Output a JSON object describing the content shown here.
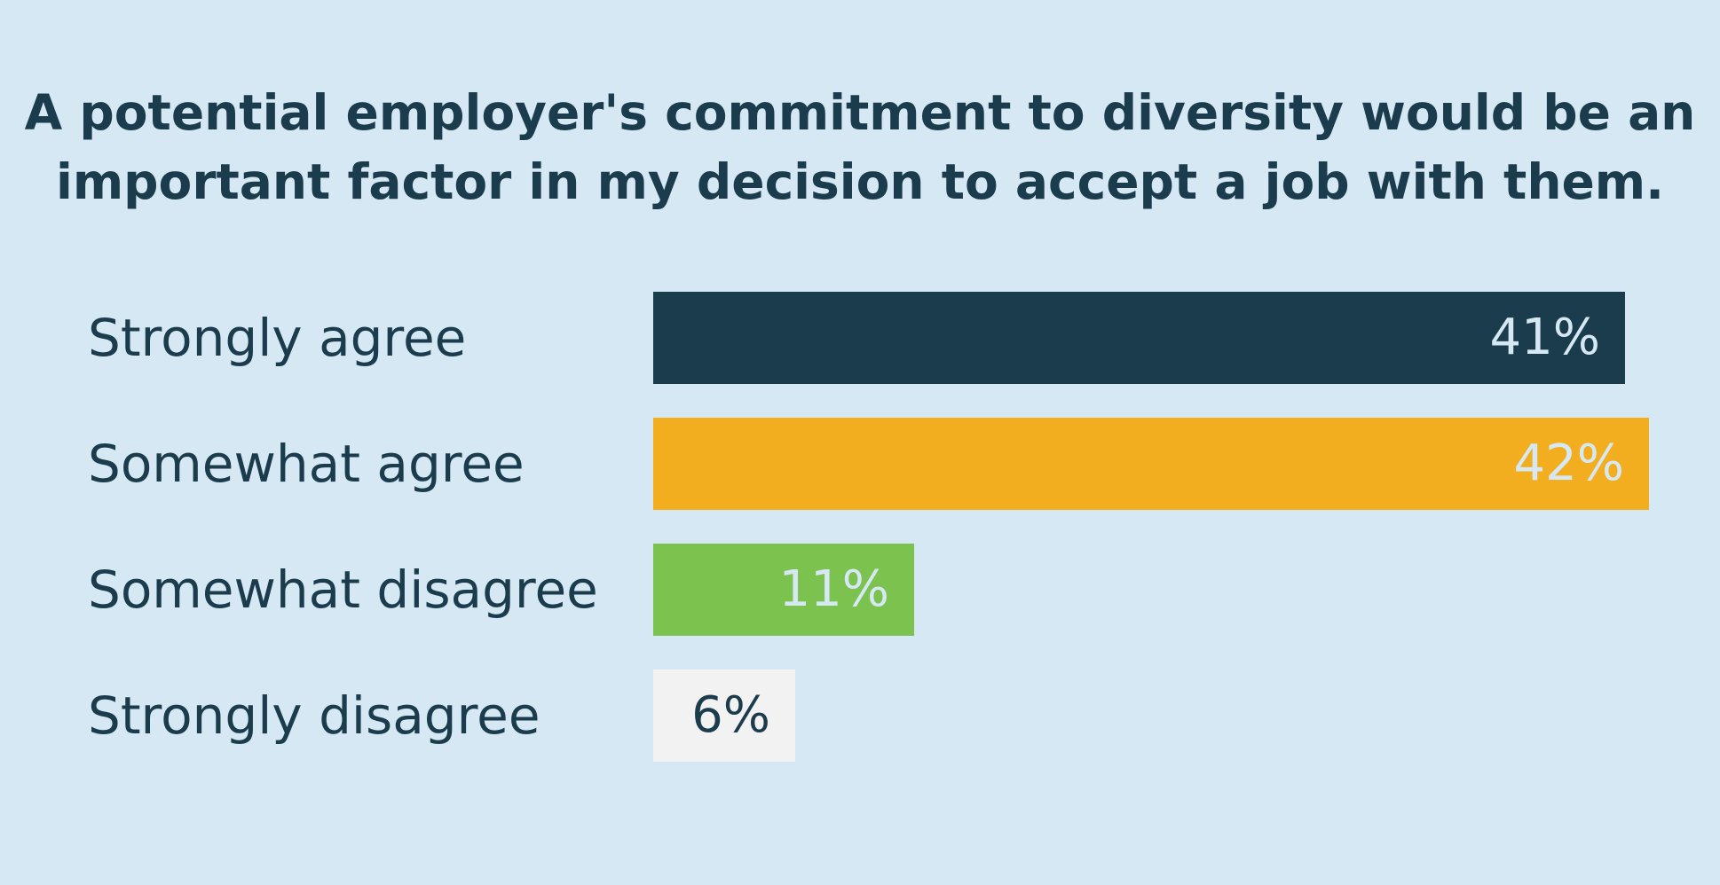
{
  "title": {
    "line1": "A potential employer's commitment to diversity would be an",
    "line2": "important factor in my decision to accept a job with them."
  },
  "chart_data": {
    "type": "bar",
    "orientation": "horizontal",
    "categories": [
      "Strongly agree",
      "Somewhat agree",
      "Somewhat disagree",
      "Strongly disagree"
    ],
    "values": [
      41,
      42,
      11,
      6
    ],
    "value_labels": [
      "41%",
      "42%",
      "11%",
      "6%"
    ],
    "colors": [
      "#1b3c4c",
      "#f2ae1f",
      "#7bc24e",
      "#f2f2f2"
    ],
    "label_colors": [
      "#d6e8f4",
      "#d6e8f4",
      "#d6e8f4",
      "#1b3c4c"
    ],
    "xlim": [
      0,
      42
    ],
    "grid": false,
    "legend": "none"
  }
}
